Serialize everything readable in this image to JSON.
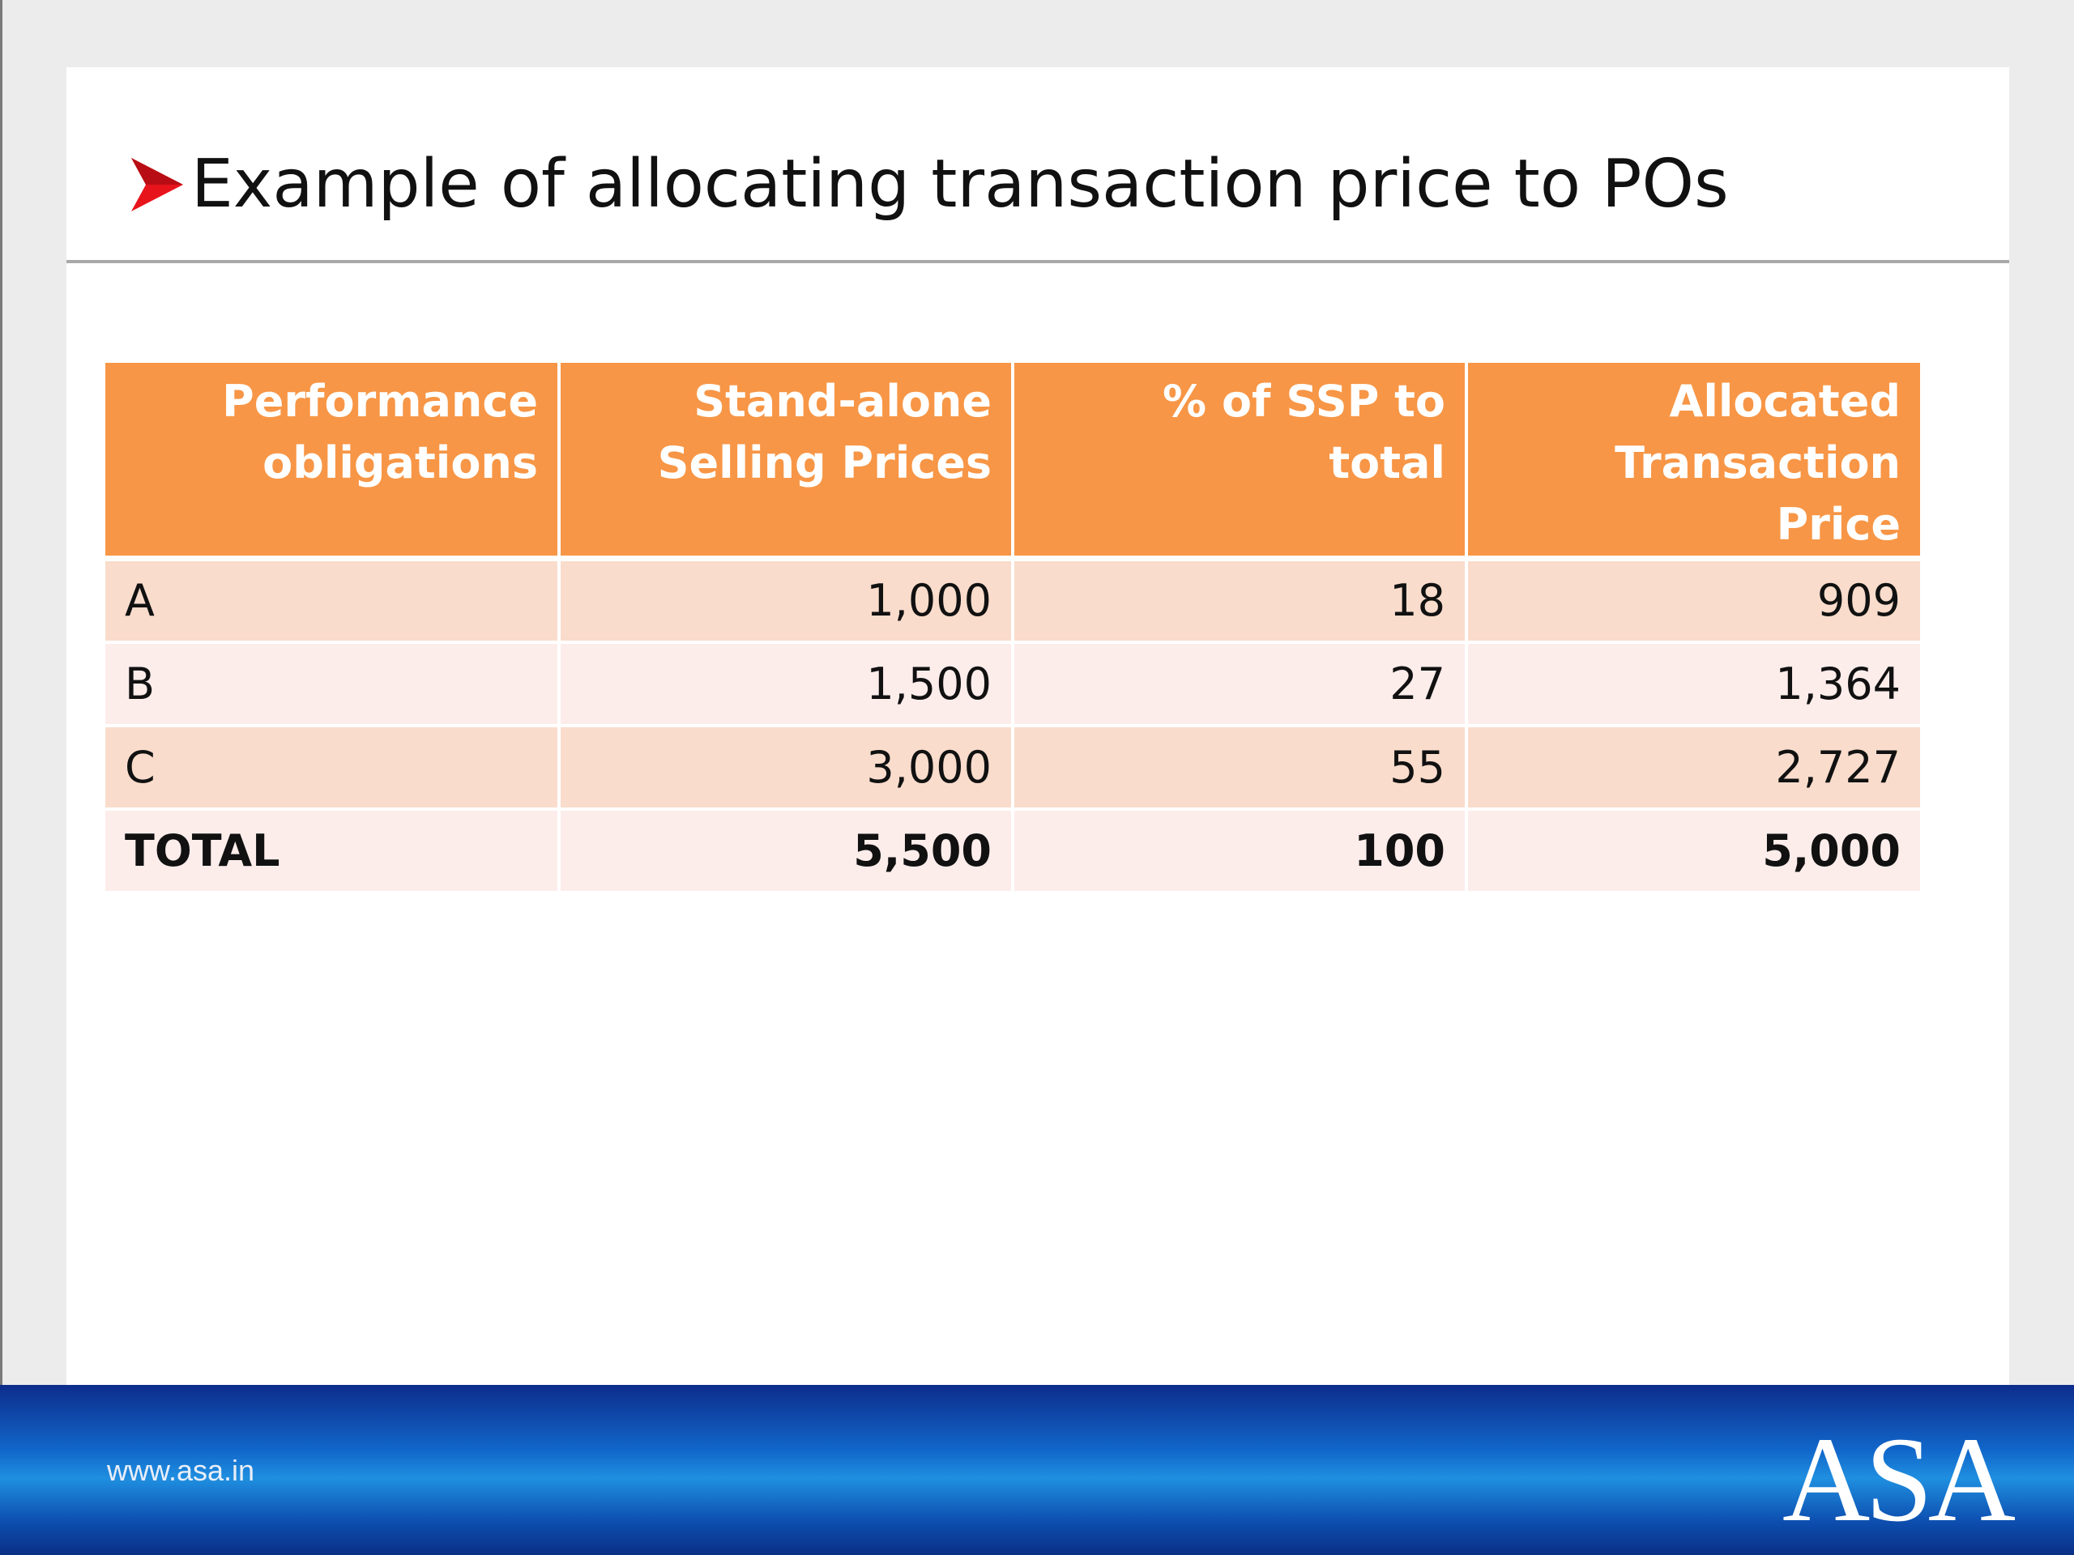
{
  "slide": {
    "title": "Example of allocating transaction price to POs",
    "bullet_color": "#e8141c",
    "bullet_icon": "arrowhead-bullet-icon"
  },
  "table": {
    "header_color": "#f79646",
    "columns": [
      {
        "line1": "Performance",
        "line2": "obligations"
      },
      {
        "line1": "Stand-alone",
        "line2": "Selling Prices"
      },
      {
        "line1": "% of SSP to total",
        "line2": ""
      },
      {
        "line1": "Allocated",
        "line2": "Transaction Price"
      }
    ],
    "rows": [
      [
        "A",
        "1,000",
        "18",
        "909"
      ],
      [
        "B",
        "1,500",
        "27",
        "1,364"
      ],
      [
        "C",
        "3,000",
        "55",
        "2,727"
      ]
    ],
    "total": [
      "TOTAL",
      "5,500",
      "100",
      "5,000"
    ]
  },
  "footer": {
    "url": "www.asa.in",
    "logo_text": "ASA"
  }
}
